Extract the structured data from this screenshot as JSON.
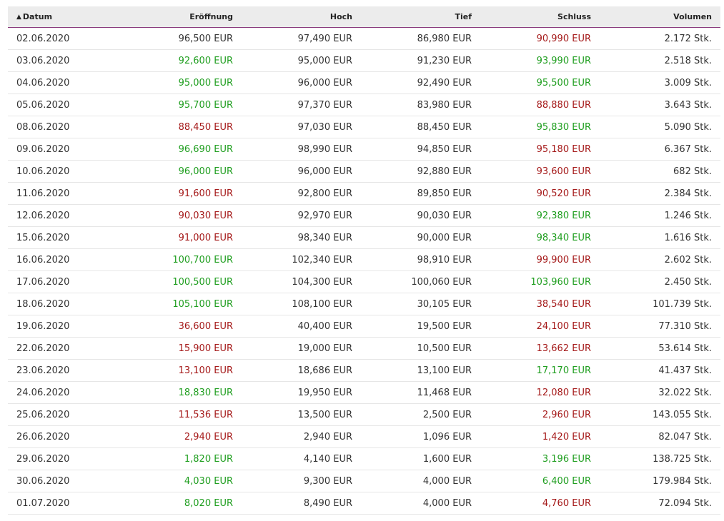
{
  "columns": [
    {
      "key": "date",
      "label": "Datum",
      "sorted": true,
      "sort_icon": "chevron-up-icon"
    },
    {
      "key": "open",
      "label": "Eröffnung"
    },
    {
      "key": "high",
      "label": "Hoch"
    },
    {
      "key": "low",
      "label": "Tief"
    },
    {
      "key": "close",
      "label": "Schluss"
    },
    {
      "key": "volume",
      "label": "Volumen"
    }
  ],
  "colors": {
    "up": "#1f9e1f",
    "down": "#a51a1a",
    "header_border": "#8a3b7d",
    "header_bg": "#ececec"
  },
  "rows": [
    {
      "date": "02.06.2020",
      "open": "96,500 EUR",
      "open_trend": "neutral",
      "high": "97,490 EUR",
      "low": "86,980 EUR",
      "close": "90,990 EUR",
      "close_trend": "down",
      "volume": "2.172 Stk."
    },
    {
      "date": "03.06.2020",
      "open": "92,600 EUR",
      "open_trend": "up",
      "high": "95,000 EUR",
      "low": "91,230 EUR",
      "close": "93,990 EUR",
      "close_trend": "up",
      "volume": "2.518 Stk."
    },
    {
      "date": "04.06.2020",
      "open": "95,000 EUR",
      "open_trend": "up",
      "high": "96,000 EUR",
      "low": "92,490 EUR",
      "close": "95,500 EUR",
      "close_trend": "up",
      "volume": "3.009 Stk."
    },
    {
      "date": "05.06.2020",
      "open": "95,700 EUR",
      "open_trend": "up",
      "high": "97,370 EUR",
      "low": "83,980 EUR",
      "close": "88,880 EUR",
      "close_trend": "down",
      "volume": "3.643 Stk."
    },
    {
      "date": "08.06.2020",
      "open": "88,450 EUR",
      "open_trend": "down",
      "high": "97,030 EUR",
      "low": "88,450 EUR",
      "close": "95,830 EUR",
      "close_trend": "up",
      "volume": "5.090 Stk."
    },
    {
      "date": "09.06.2020",
      "open": "96,690 EUR",
      "open_trend": "up",
      "high": "98,990 EUR",
      "low": "94,850 EUR",
      "close": "95,180 EUR",
      "close_trend": "down",
      "volume": "6.367 Stk."
    },
    {
      "date": "10.06.2020",
      "open": "96,000 EUR",
      "open_trend": "up",
      "high": "96,000 EUR",
      "low": "92,880 EUR",
      "close": "93,600 EUR",
      "close_trend": "down",
      "volume": "682 Stk."
    },
    {
      "date": "11.06.2020",
      "open": "91,600 EUR",
      "open_trend": "down",
      "high": "92,800 EUR",
      "low": "89,850 EUR",
      "close": "90,520 EUR",
      "close_trend": "down",
      "volume": "2.384 Stk."
    },
    {
      "date": "12.06.2020",
      "open": "90,030 EUR",
      "open_trend": "down",
      "high": "92,970 EUR",
      "low": "90,030 EUR",
      "close": "92,380 EUR",
      "close_trend": "up",
      "volume": "1.246 Stk."
    },
    {
      "date": "15.06.2020",
      "open": "91,000 EUR",
      "open_trend": "down",
      "high": "98,340 EUR",
      "low": "90,000 EUR",
      "close": "98,340 EUR",
      "close_trend": "up",
      "volume": "1.616 Stk."
    },
    {
      "date": "16.06.2020",
      "open": "100,700 EUR",
      "open_trend": "up",
      "high": "102,340 EUR",
      "low": "98,910 EUR",
      "close": "99,900 EUR",
      "close_trend": "down",
      "volume": "2.602 Stk."
    },
    {
      "date": "17.06.2020",
      "open": "100,500 EUR",
      "open_trend": "up",
      "high": "104,300 EUR",
      "low": "100,060 EUR",
      "close": "103,960 EUR",
      "close_trend": "up",
      "volume": "2.450 Stk."
    },
    {
      "date": "18.06.2020",
      "open": "105,100 EUR",
      "open_trend": "up",
      "high": "108,100 EUR",
      "low": "30,105 EUR",
      "close": "38,540 EUR",
      "close_trend": "down",
      "volume": "101.739 Stk."
    },
    {
      "date": "19.06.2020",
      "open": "36,600 EUR",
      "open_trend": "down",
      "high": "40,400 EUR",
      "low": "19,500 EUR",
      "close": "24,100 EUR",
      "close_trend": "down",
      "volume": "77.310 Stk."
    },
    {
      "date": "22.06.2020",
      "open": "15,900 EUR",
      "open_trend": "down",
      "high": "19,000 EUR",
      "low": "10,500 EUR",
      "close": "13,662 EUR",
      "close_trend": "down",
      "volume": "53.614 Stk."
    },
    {
      "date": "23.06.2020",
      "open": "13,100 EUR",
      "open_trend": "down",
      "high": "18,686 EUR",
      "low": "13,100 EUR",
      "close": "17,170 EUR",
      "close_trend": "up",
      "volume": "41.437 Stk."
    },
    {
      "date": "24.06.2020",
      "open": "18,830 EUR",
      "open_trend": "up",
      "high": "19,950 EUR",
      "low": "11,468 EUR",
      "close": "12,080 EUR",
      "close_trend": "down",
      "volume": "32.022 Stk."
    },
    {
      "date": "25.06.2020",
      "open": "11,536 EUR",
      "open_trend": "down",
      "high": "13,500 EUR",
      "low": "2,500 EUR",
      "close": "2,960 EUR",
      "close_trend": "down",
      "volume": "143.055 Stk."
    },
    {
      "date": "26.06.2020",
      "open": "2,940 EUR",
      "open_trend": "down",
      "high": "2,940 EUR",
      "low": "1,096 EUR",
      "close": "1,420 EUR",
      "close_trend": "down",
      "volume": "82.047 Stk."
    },
    {
      "date": "29.06.2020",
      "open": "1,820 EUR",
      "open_trend": "up",
      "high": "4,140 EUR",
      "low": "1,600 EUR",
      "close": "3,196 EUR",
      "close_trend": "up",
      "volume": "138.725 Stk."
    },
    {
      "date": "30.06.2020",
      "open": "4,030 EUR",
      "open_trend": "up",
      "high": "9,300 EUR",
      "low": "4,000 EUR",
      "close": "6,400 EUR",
      "close_trend": "up",
      "volume": "179.984 Stk."
    },
    {
      "date": "01.07.2020",
      "open": "8,020 EUR",
      "open_trend": "up",
      "high": "8,490 EUR",
      "low": "4,000 EUR",
      "close": "4,760 EUR",
      "close_trend": "down",
      "volume": "72.094 Stk."
    }
  ]
}
